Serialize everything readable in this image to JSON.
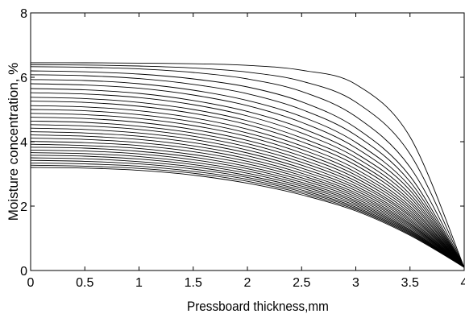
{
  "chart_data": {
    "type": "line",
    "xlabel": "Pressboard thickness,mm",
    "ylabel": "Moisture concentration, %",
    "xlim": [
      0,
      4
    ],
    "ylim": [
      0,
      8
    ],
    "xticks": [
      "0",
      "0.5",
      "1",
      "1.5",
      "2",
      "2.5",
      "3",
      "3.5",
      "4"
    ],
    "yticks": [
      "0",
      "2",
      "4",
      "6",
      "8"
    ],
    "grid": false,
    "line_color": "#000000",
    "x": [
      0,
      0.5,
      1,
      1.5,
      2,
      2.5,
      3,
      3.5,
      4
    ],
    "series": [
      {
        "values": [
          6.45,
          6.45,
          6.44,
          6.42,
          6.37,
          6.22,
          5.78,
          4.15,
          0.1
        ]
      },
      {
        "values": [
          6.39,
          6.38,
          6.35,
          6.29,
          6.16,
          5.88,
          5.23,
          3.62,
          0.1
        ]
      },
      {
        "values": [
          6.33,
          6.31,
          6.26,
          6.15,
          5.95,
          5.56,
          4.78,
          3.21,
          0.1
        ]
      },
      {
        "values": [
          6.2,
          6.17,
          6.1,
          5.95,
          5.7,
          5.24,
          4.43,
          2.93,
          0.1
        ]
      },
      {
        "values": [
          6.08,
          6.05,
          5.96,
          5.78,
          5.49,
          5.0,
          4.2,
          2.76,
          0.1
        ]
      },
      {
        "values": [
          5.93,
          5.9,
          5.8,
          5.6,
          5.28,
          4.78,
          3.98,
          2.61,
          0.1
        ]
      },
      {
        "values": [
          5.8,
          5.76,
          5.66,
          5.45,
          5.12,
          4.6,
          3.81,
          2.49,
          0.1
        ]
      },
      {
        "values": [
          5.65,
          5.61,
          5.5,
          5.28,
          4.94,
          4.42,
          3.64,
          2.37,
          0.1
        ]
      },
      {
        "values": [
          5.52,
          5.48,
          5.37,
          5.15,
          4.8,
          4.27,
          3.51,
          2.27,
          0.1
        ]
      },
      {
        "values": [
          5.38,
          5.34,
          5.22,
          5.0,
          4.65,
          4.12,
          3.38,
          2.17,
          0.1
        ]
      },
      {
        "values": [
          5.26,
          5.22,
          5.1,
          4.88,
          4.53,
          4.0,
          3.27,
          2.09,
          0.1
        ]
      },
      {
        "values": [
          5.12,
          5.08,
          4.96,
          4.74,
          4.39,
          3.87,
          3.15,
          2.0,
          0.1
        ]
      },
      {
        "values": [
          5.0,
          4.96,
          4.84,
          4.62,
          4.27,
          3.76,
          3.05,
          1.93,
          0.1
        ]
      },
      {
        "values": [
          4.88,
          4.84,
          4.72,
          4.5,
          4.16,
          3.65,
          2.96,
          1.86,
          0.1
        ]
      },
      {
        "values": [
          4.76,
          4.72,
          4.6,
          4.38,
          4.04,
          3.55,
          2.87,
          1.79,
          0.1
        ]
      },
      {
        "values": [
          4.64,
          4.6,
          4.48,
          4.27,
          3.94,
          3.45,
          2.78,
          1.73,
          0.1
        ]
      },
      {
        "values": [
          4.53,
          4.49,
          4.38,
          4.17,
          3.84,
          3.36,
          2.7,
          1.68,
          0.1
        ]
      },
      {
        "values": [
          4.42,
          4.38,
          4.27,
          4.07,
          3.74,
          3.27,
          2.62,
          1.62,
          0.1
        ]
      },
      {
        "values": [
          4.31,
          4.27,
          4.17,
          3.97,
          3.65,
          3.18,
          2.55,
          1.57,
          0.1
        ]
      },
      {
        "values": [
          4.21,
          4.17,
          4.07,
          3.87,
          3.56,
          3.1,
          2.48,
          1.52,
          0.1
        ]
      },
      {
        "values": [
          4.11,
          4.07,
          3.97,
          3.78,
          3.47,
          3.02,
          2.41,
          1.47,
          0.1
        ]
      },
      {
        "values": [
          4.01,
          3.97,
          3.88,
          3.69,
          3.39,
          2.95,
          2.35,
          1.43,
          0.1
        ]
      },
      {
        "values": [
          3.92,
          3.88,
          3.79,
          3.6,
          3.31,
          2.88,
          2.29,
          1.39,
          0.1
        ]
      },
      {
        "values": [
          3.83,
          3.8,
          3.7,
          3.52,
          3.23,
          2.81,
          2.23,
          1.35,
          0.1
        ]
      },
      {
        "values": [
          3.74,
          3.71,
          3.62,
          3.44,
          3.16,
          2.74,
          2.17,
          1.31,
          0.1
        ]
      },
      {
        "values": [
          3.66,
          3.63,
          3.54,
          3.36,
          3.09,
          2.68,
          2.12,
          1.27,
          0.1
        ]
      },
      {
        "values": [
          3.58,
          3.55,
          3.46,
          3.29,
          3.02,
          2.62,
          2.07,
          1.24,
          0.1
        ]
      },
      {
        "values": [
          3.5,
          3.47,
          3.38,
          3.22,
          2.95,
          2.56,
          2.02,
          1.21,
          0.1
        ]
      },
      {
        "values": [
          3.42,
          3.39,
          3.31,
          3.15,
          2.89,
          2.5,
          1.97,
          1.18,
          0.1
        ]
      },
      {
        "values": [
          3.34,
          3.31,
          3.24,
          3.08,
          2.83,
          2.45,
          1.93,
          1.15,
          0.1
        ]
      },
      {
        "values": [
          3.27,
          3.24,
          3.17,
          3.02,
          2.77,
          2.4,
          1.89,
          1.12,
          0.1
        ]
      },
      {
        "values": [
          3.2,
          3.18,
          3.11,
          2.96,
          2.71,
          2.35,
          1.85,
          1.09,
          0.1
        ]
      }
    ]
  }
}
